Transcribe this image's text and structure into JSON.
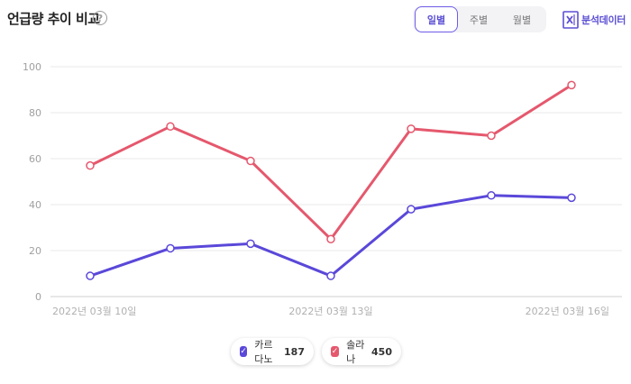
{
  "header": {
    "title": "언급량 추이 비교",
    "help_glyph": "?",
    "periods": [
      {
        "label": "일별",
        "active": true
      },
      {
        "label": "주별",
        "active": false
      },
      {
        "label": "월별",
        "active": false
      }
    ],
    "export_label": "분석데이터",
    "export_icon": "excel-icon"
  },
  "legend": [
    {
      "name": "카르다노",
      "count": "187",
      "color": "#5a48d9"
    },
    {
      "name": "솔라나",
      "count": "450",
      "color": "#e5586d"
    }
  ],
  "chart_data": {
    "type": "line",
    "x": [
      "2022-03-10",
      "2022-03-11",
      "2022-03-12",
      "2022-03-13",
      "2022-03-14",
      "2022-03-15",
      "2022-03-16"
    ],
    "x_tick_labels": [
      "2022년 03월 10일",
      "2022년 03월 13일",
      "2022년 03월 16일"
    ],
    "x_tick_indices": [
      0,
      3,
      6
    ],
    "series": [
      {
        "name": "카르다노",
        "color": "#5a48d9",
        "values": [
          9,
          21,
          23,
          9,
          38,
          44,
          43
        ]
      },
      {
        "name": "솔라나",
        "color": "#e5586d",
        "values": [
          57,
          74,
          59,
          25,
          73,
          70,
          92
        ]
      }
    ],
    "ylim": [
      0,
      100
    ],
    "yticks": [
      0,
      20,
      40,
      60,
      80,
      100
    ],
    "grid": true,
    "legend_position": "bottom-center",
    "title": "",
    "xlabel": "",
    "ylabel": ""
  }
}
